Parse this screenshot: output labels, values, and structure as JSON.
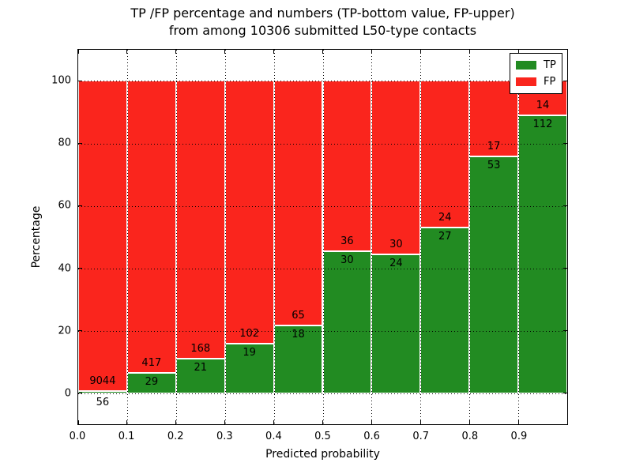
{
  "title": {
    "line1": "TP /FP percentage and numbers (TP-bottom value, FP-upper)",
    "line2": "from among 10306 submitted L50-type contacts"
  },
  "axes": {
    "xlabel": "Predicted probability",
    "ylabel": "Percentage"
  },
  "legend": {
    "entries": [
      {
        "label": "TP",
        "color": "#228B22"
      },
      {
        "label": "FP",
        "color": "#fa251d"
      }
    ]
  },
  "chart_data": {
    "type": "bar",
    "stacked": true,
    "normalized_to_percent": 100,
    "title": "TP /FP percentage and numbers (TP-bottom value, FP-upper) from among 10306 submitted L50-type contacts",
    "xlabel": "Predicted probability",
    "ylabel": "Percentage",
    "bin_width": 0.1,
    "bin_starts": [
      0.0,
      0.1,
      0.2,
      0.3,
      0.4,
      0.5,
      0.6,
      0.7,
      0.8,
      0.9
    ],
    "xticks": [
      "0.0",
      "0.1",
      "0.2",
      "0.3",
      "0.4",
      "0.5",
      "0.6",
      "0.7",
      "0.8",
      "0.9"
    ],
    "yticks": [
      0,
      20,
      40,
      60,
      80,
      100
    ],
    "xlim": [
      0.0,
      1.0
    ],
    "ylim": [
      -10,
      110
    ],
    "grid": "dotted",
    "legend_position": "upper right",
    "series": [
      {
        "name": "TP",
        "color": "#228B22",
        "counts": [
          56,
          29,
          21,
          19,
          18,
          30,
          24,
          27,
          53,
          112
        ]
      },
      {
        "name": "FP",
        "color": "#fa251d",
        "counts": [
          9044,
          417,
          168,
          102,
          65,
          36,
          30,
          24,
          17,
          14
        ]
      }
    ],
    "tp_percent": [
      0.62,
      6.5,
      11.11,
      15.7,
      21.69,
      45.45,
      44.44,
      52.94,
      75.71,
      88.89
    ],
    "total_submitted": 10306
  }
}
